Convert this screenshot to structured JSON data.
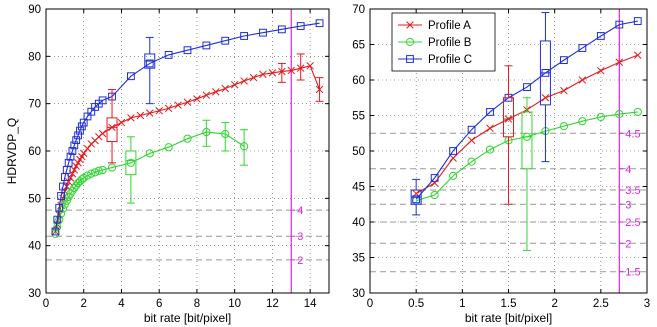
{
  "chart_data": [
    {
      "type": "line",
      "title": "",
      "xlabel": "bit rate [bit/pixel]",
      "ylabel": "HDRVDP_Q",
      "xlim": [
        0,
        15
      ],
      "ylim": [
        30,
        90
      ],
      "xticks": [
        0,
        2,
        4,
        6,
        8,
        10,
        12,
        14
      ],
      "yticks": [
        30,
        40,
        50,
        60,
        70,
        80,
        90
      ],
      "grid": "dotted",
      "series": [
        {
          "name": "Profile A",
          "color": "#e41a1c",
          "marker": "x",
          "x": [
            0.5,
            0.6,
            0.7,
            0.8,
            0.9,
            1.0,
            1.1,
            1.2,
            1.3,
            1.4,
            1.5,
            1.6,
            1.7,
            1.8,
            1.9,
            2.0,
            2.2,
            2.4,
            2.6,
            2.8,
            3.0,
            3.5,
            4.0,
            4.5,
            5.0,
            5.5,
            6.0,
            6.5,
            7.0,
            7.5,
            8.0,
            8.5,
            9.0,
            9.5,
            10.0,
            10.5,
            11.0,
            11.5,
            12.0,
            12.5,
            13.0,
            13.5,
            14.0,
            14.5
          ],
          "y": [
            43,
            44.5,
            46.5,
            48.5,
            50,
            51.5,
            52.5,
            53.5,
            54.3,
            55.2,
            56,
            56.8,
            57.5,
            58.2,
            58.8,
            59.5,
            60.5,
            61.5,
            62.2,
            63,
            63.7,
            65,
            66,
            67,
            67.5,
            68,
            68.5,
            69,
            69.7,
            70.3,
            71,
            71.8,
            72.5,
            73.2,
            74,
            74.8,
            75.5,
            76.2,
            76.5,
            76.8,
            77,
            77.5,
            78,
            73
          ]
        },
        {
          "name": "Profile B",
          "color": "#2fd62f",
          "marker": "o",
          "x": [
            0.5,
            0.6,
            0.7,
            0.8,
            0.9,
            1.0,
            1.1,
            1.2,
            1.3,
            1.4,
            1.5,
            1.6,
            1.7,
            1.8,
            1.9,
            2.0,
            2.2,
            2.4,
            2.6,
            2.8,
            3.0,
            3.5,
            4.5,
            5.5,
            6.5,
            7.5,
            8.5,
            9.5,
            10.5
          ],
          "y": [
            42.5,
            44,
            45.5,
            46.8,
            47.8,
            48.7,
            49.5,
            50.3,
            51,
            51.6,
            52.2,
            52.7,
            53.2,
            53.6,
            54,
            54.3,
            54.8,
            55.2,
            55.5,
            55.8,
            56,
            56.5,
            57.5,
            59.5,
            60.8,
            62.6,
            64,
            63.6,
            61
          ]
        },
        {
          "name": "Profile C",
          "color": "#1f2fd6",
          "marker": "s",
          "x": [
            0.5,
            0.6,
            0.7,
            0.8,
            0.9,
            1.0,
            1.1,
            1.2,
            1.3,
            1.4,
            1.5,
            1.6,
            1.7,
            1.8,
            1.9,
            2.0,
            2.2,
            2.4,
            2.6,
            2.8,
            3.0,
            3.5,
            4.5,
            5.5,
            6.5,
            7.5,
            8.5,
            9.5,
            10.5,
            11.5,
            12.5,
            13.5,
            14.5
          ],
          "y": [
            43,
            45.5,
            48,
            50.5,
            52.5,
            54.5,
            56,
            57.5,
            58.8,
            60,
            61.2,
            62.3,
            63.3,
            64.3,
            65.2,
            66,
            67.3,
            68.3,
            69.3,
            70,
            70.7,
            71.5,
            75.8,
            78.5,
            80.3,
            81.3,
            82.3,
            83.3,
            84.3,
            85,
            85.7,
            86.4,
            87
          ]
        }
      ],
      "boxes": [
        {
          "series": "Profile A",
          "x": 3.5,
          "lo": 57.5,
          "q1": 62,
          "median": 65,
          "q3": 67,
          "hi": 73
        },
        {
          "series": "Profile B",
          "x": 4.5,
          "lo": 49,
          "q1": 55,
          "median": 58,
          "q3": 60,
          "hi": 63
        },
        {
          "series": "Profile C",
          "x": 5.5,
          "lo": 70,
          "q1": 77.5,
          "median": 79,
          "q3": 80.5,
          "hi": 84
        }
      ],
      "errorbars": [
        {
          "series": "Profile B",
          "x": 8.5,
          "lo": 61,
          "hi": 66.5
        },
        {
          "series": "Profile B",
          "x": 9.5,
          "lo": 60,
          "hi": 66
        },
        {
          "series": "Profile B",
          "x": 10.5,
          "lo": 57,
          "hi": 64.5
        },
        {
          "series": "Profile A",
          "x": 12.5,
          "lo": 74.5,
          "hi": 78.5
        },
        {
          "series": "Profile A",
          "x": 13.5,
          "lo": 75,
          "hi": 80.5
        },
        {
          "series": "Profile A",
          "x": 14.5,
          "lo": 70.5,
          "hi": 75.5
        }
      ],
      "reference": {
        "color": "#e020e0",
        "vline_x": 13,
        "tick_labels": [
          "2",
          "3",
          "4"
        ],
        "gray_lines_y": [
          37,
          42,
          47.5
        ]
      }
    },
    {
      "type": "line",
      "title": "",
      "xlabel": "bit rate [bit/pixel]",
      "ylabel": "",
      "xlim": [
        0,
        3
      ],
      "ylim": [
        30,
        70
      ],
      "xticks": [
        "0",
        "0.5",
        "1",
        "1.5",
        "2",
        "2.5",
        "3"
      ],
      "yticks": [
        30,
        35,
        40,
        45,
        50,
        55,
        60,
        65,
        70
      ],
      "grid": "dotted",
      "legend": "top-left",
      "legend_entries": [
        "Profile A",
        "Profile B",
        "Profile C"
      ],
      "series": [
        {
          "name": "Profile A",
          "color": "#e41a1c",
          "marker": "x",
          "x": [
            0.5,
            0.7,
            0.9,
            1.1,
            1.3,
            1.5,
            1.7,
            1.9,
            2.1,
            2.3,
            2.5,
            2.7,
            2.9
          ],
          "y": [
            44,
            45.5,
            49,
            51.5,
            53.2,
            54.5,
            55.8,
            57.5,
            58.5,
            60,
            61.3,
            62.5,
            63.5
          ]
        },
        {
          "name": "Profile B",
          "color": "#2fd62f",
          "marker": "o",
          "x": [
            0.5,
            0.7,
            0.9,
            1.1,
            1.3,
            1.5,
            1.7,
            1.9,
            2.1,
            2.3,
            2.5,
            2.7,
            2.9
          ],
          "y": [
            43,
            43.8,
            46.5,
            48.5,
            50.2,
            51.5,
            52,
            52.8,
            53.5,
            54.2,
            54.8,
            55.2,
            55.5
          ]
        },
        {
          "name": "Profile C",
          "color": "#1f2fd6",
          "marker": "s",
          "x": [
            0.5,
            0.7,
            0.9,
            1.1,
            1.3,
            1.5,
            1.7,
            1.9,
            2.1,
            2.3,
            2.5,
            2.7,
            2.9
          ],
          "y": [
            43.2,
            46.2,
            50,
            53,
            55.5,
            57.5,
            59,
            61,
            62.8,
            64.5,
            66.2,
            67.8,
            68.3
          ]
        }
      ],
      "boxes": [
        {
          "series": "Profile C",
          "x": 0.5,
          "lo": 41,
          "q1": 42.5,
          "median": 43.5,
          "q3": 44.5,
          "hi": 46
        },
        {
          "series": "Profile A",
          "x": 1.5,
          "lo": 42.5,
          "q1": 52,
          "median": 54.5,
          "q3": 57.5,
          "hi": 62
        },
        {
          "series": "Profile B",
          "x": 1.7,
          "lo": 36,
          "q1": 47.5,
          "median": 52,
          "q3": 55.5,
          "hi": 57.5
        },
        {
          "series": "Profile C",
          "x": 1.9,
          "lo": 48.5,
          "q1": 56.5,
          "median": 61,
          "q3": 65.5,
          "hi": 69.5
        }
      ],
      "errorbars": [],
      "reference": {
        "color": "#e020e0",
        "vline_x": 2.7,
        "tick_labels": [
          "1.5",
          "2",
          "2.5",
          "3",
          "3.5",
          "4",
          "4.5"
        ],
        "gray_lines_y": [
          33,
          37,
          40,
          42.5,
          44.5,
          47.5,
          52.5
        ]
      }
    }
  ]
}
